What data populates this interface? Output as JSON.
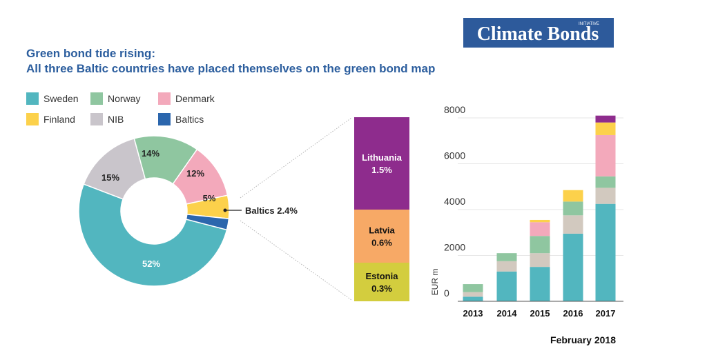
{
  "header": {
    "title": "Green bond tide rising:",
    "subtitle": "All three Baltic countries have placed themselves on the green bond map",
    "logo_text": "Climate Bonds",
    "logo_small": "INITIATIVE",
    "date": "February 2018"
  },
  "colors": {
    "title": "#2c5e9e",
    "logo_bg": "#2d5a9b",
    "sweden": "#52b6bf",
    "norway": "#8fc6a0",
    "denmark": "#f3a9bb",
    "finland": "#fcd14b",
    "nib": "#c9c5cb",
    "baltics": "#2b66ad",
    "lithuania": "#8e2c8d",
    "latvia": "#f7a966",
    "estonia": "#d3cd3e",
    "stacked_nib": "#d2c9bf",
    "axis_text": "#333333",
    "grid": "#e6e6e6"
  },
  "chart_data": [
    {
      "type": "pie",
      "subtype": "donut",
      "legend_position": "top",
      "slices": [
        {
          "name": "Sweden",
          "value": 52,
          "label": "52%",
          "color_key": "sweden"
        },
        {
          "name": "Baltics",
          "value": 2.4,
          "label": "Baltics 2.4%",
          "color_key": "baltics"
        },
        {
          "name": "Finland",
          "value": 5,
          "label": "5%",
          "color_key": "finland"
        },
        {
          "name": "Denmark",
          "value": 12,
          "label": "12%",
          "color_key": "denmark"
        },
        {
          "name": "Norway",
          "value": 14,
          "label": "14%",
          "color_key": "norway"
        },
        {
          "name": "NIB",
          "value": 15,
          "label": "15%",
          "color_key": "nib"
        }
      ]
    },
    {
      "type": "bar",
      "subtype": "stacked-single",
      "segments": [
        {
          "name": "Lithuania",
          "value": 1.5,
          "label": "1.5%",
          "color_key": "lithuania"
        },
        {
          "name": "Latvia",
          "value": 0.6,
          "label": "0.6%",
          "color_key": "latvia"
        },
        {
          "name": "Estonia",
          "value": 0.3,
          "label": "0.3%",
          "color_key": "estonia"
        }
      ]
    },
    {
      "type": "bar",
      "subtype": "stacked",
      "ylabel": "EUR m",
      "xlabel": "",
      "ylim": [
        0,
        8000
      ],
      "yticks": [
        0,
        2000,
        4000,
        6000,
        8000
      ],
      "grid": true,
      "categories": [
        "2013",
        "2014",
        "2015",
        "2016",
        "2017"
      ],
      "series": [
        {
          "name": "Sweden",
          "color_key": "sweden",
          "values": [
            200,
            1300,
            1500,
            2950,
            4250
          ]
        },
        {
          "name": "NIB",
          "color_key": "stacked_nib",
          "values": [
            200,
            450,
            600,
            800,
            700
          ]
        },
        {
          "name": "Norway",
          "color_key": "norway",
          "values": [
            350,
            350,
            750,
            600,
            500
          ]
        },
        {
          "name": "Denmark",
          "color_key": "denmark",
          "values": [
            0,
            0,
            600,
            0,
            1800
          ]
        },
        {
          "name": "Finland",
          "color_key": "finland",
          "values": [
            0,
            0,
            100,
            500,
            550
          ]
        },
        {
          "name": "Baltics",
          "color_key": "lithuania",
          "values": [
            0,
            0,
            0,
            0,
            300
          ]
        }
      ]
    }
  ]
}
